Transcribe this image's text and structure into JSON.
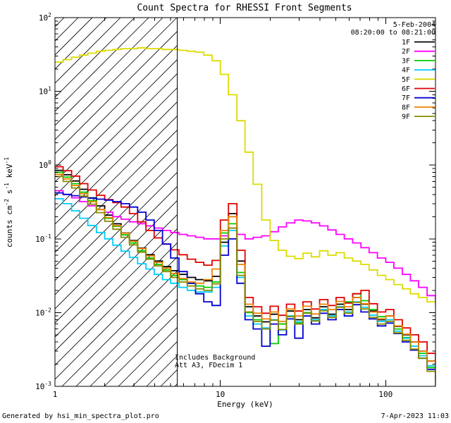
{
  "title": "Count Spectra for RHESSI Front Segments",
  "header": {
    "date": "5-Feb-2004",
    "time_range": "08:20:00 to 08:21:00"
  },
  "annotations": {
    "line1": "Includes Background",
    "line2": "Att A3, FDecim 1"
  },
  "footer": {
    "left": "Generated by hsi_min_spectra_plot.pro",
    "right": "7-Apr-2023 11:03"
  },
  "chart_data": {
    "type": "line",
    "scale": "log-log",
    "step": true,
    "title": "Count Spectra for RHESSI Front Segments",
    "xlabel": "Energy (keV)",
    "ylabel": "counts cm^-2 s^-1 keV^-1",
    "ylabel_segments": [
      [
        "t",
        "counts cm"
      ],
      [
        "sup",
        "-2"
      ],
      [
        "t",
        " s"
      ],
      [
        "sup",
        "-1"
      ],
      [
        "t",
        " keV"
      ],
      [
        "sup",
        "-1"
      ]
    ],
    "xlim": [
      1,
      200
    ],
    "ylim": [
      0.001,
      100
    ],
    "x_ticks": [
      {
        "v": 1,
        "label": "1"
      },
      {
        "v": 10,
        "label": "10"
      },
      {
        "v": 100,
        "label": "100"
      }
    ],
    "y_tick_exponents": [
      -3,
      -2,
      -1,
      0,
      1,
      2
    ],
    "grid": false,
    "legend_position": "top-right",
    "hatch_region": {
      "x_from": 1,
      "x_to": 5.5
    },
    "x": [
      1.0,
      1.12,
      1.26,
      1.41,
      1.58,
      1.78,
      2.0,
      2.24,
      2.51,
      2.82,
      3.16,
      3.55,
      3.98,
      4.47,
      5.01,
      5.62,
      6.31,
      7.08,
      7.94,
      8.91,
      10.0,
      11.2,
      12.6,
      14.1,
      15.8,
      17.8,
      20.0,
      22.4,
      25.1,
      28.2,
      31.6,
      35.5,
      39.8,
      44.7,
      50.1,
      56.2,
      63.1,
      70.8,
      79.4,
      89.1,
      100,
      112,
      126,
      141,
      158,
      178,
      200
    ],
    "series": [
      {
        "name": "1F",
        "color": "#000000",
        "values": [
          0.85,
          0.74,
          0.61,
          0.47,
          0.36,
          0.28,
          0.21,
          0.16,
          0.12,
          0.095,
          0.075,
          0.061,
          0.05,
          0.042,
          0.037,
          0.033,
          0.03,
          0.028,
          0.027,
          0.031,
          0.09,
          0.22,
          0.05,
          0.012,
          0.009,
          0.0075,
          0.0095,
          0.007,
          0.0105,
          0.008,
          0.011,
          0.0085,
          0.012,
          0.0095,
          0.013,
          0.011,
          0.016,
          0.013,
          0.0105,
          0.008,
          0.009,
          0.0065,
          0.005,
          0.004,
          0.003,
          0.0022,
          0.0016
        ]
      },
      {
        "name": "2F",
        "color": "#ff00ff",
        "values": [
          0.45,
          0.4,
          0.36,
          0.32,
          0.28,
          0.25,
          0.23,
          0.2,
          0.185,
          0.17,
          0.16,
          0.15,
          0.14,
          0.13,
          0.122,
          0.115,
          0.11,
          0.105,
          0.1,
          0.1,
          0.11,
          0.14,
          0.115,
          0.1,
          0.105,
          0.11,
          0.125,
          0.145,
          0.165,
          0.18,
          0.175,
          0.165,
          0.15,
          0.132,
          0.115,
          0.1,
          0.088,
          0.076,
          0.065,
          0.055,
          0.048,
          0.04,
          0.033,
          0.027,
          0.022,
          0.017,
          0.013
        ]
      },
      {
        "name": "3F",
        "color": "#00cc00",
        "values": [
          0.8,
          0.69,
          0.56,
          0.43,
          0.33,
          0.25,
          0.19,
          0.148,
          0.113,
          0.088,
          0.069,
          0.055,
          0.045,
          0.038,
          0.032,
          0.028,
          0.025,
          0.023,
          0.022,
          0.026,
          0.12,
          0.16,
          0.035,
          0.01,
          0.008,
          0.006,
          0.0038,
          0.007,
          0.009,
          0.0072,
          0.01,
          0.008,
          0.011,
          0.009,
          0.012,
          0.014,
          0.018,
          0.0145,
          0.011,
          0.0088,
          0.008,
          0.006,
          0.0046,
          0.0035,
          0.0028,
          0.0018,
          0.0012
        ]
      },
      {
        "name": "4F",
        "color": "#00ccff",
        "values": [
          0.35,
          0.3,
          0.24,
          0.19,
          0.152,
          0.122,
          0.1,
          0.082,
          0.068,
          0.056,
          0.046,
          0.039,
          0.033,
          0.028,
          0.025,
          0.022,
          0.02,
          0.019,
          0.019,
          0.022,
          0.08,
          0.13,
          0.03,
          0.009,
          0.007,
          0.0062,
          0.008,
          0.0058,
          0.009,
          0.0075,
          0.0098,
          0.008,
          0.011,
          0.009,
          0.012,
          0.0102,
          0.014,
          0.0118,
          0.0092,
          0.0076,
          0.008,
          0.0056,
          0.0045,
          0.0035,
          0.0026,
          0.0019,
          0.0014
        ]
      },
      {
        "name": "5F",
        "color": "#dcdc00",
        "values": [
          25,
          27,
          29,
          31,
          33,
          35,
          36,
          37,
          38,
          38,
          39,
          38,
          38,
          37,
          37,
          36,
          35,
          34,
          31,
          26,
          17,
          9,
          4,
          1.5,
          0.55,
          0.18,
          0.095,
          0.07,
          0.058,
          0.054,
          0.064,
          0.057,
          0.069,
          0.06,
          0.065,
          0.055,
          0.05,
          0.045,
          0.038,
          0.032,
          0.028,
          0.024,
          0.021,
          0.018,
          0.016,
          0.014,
          0.012
        ]
      },
      {
        "name": "6F",
        "color": "#e00000",
        "values": [
          0.95,
          0.84,
          0.71,
          0.56,
          0.46,
          0.39,
          0.34,
          0.31,
          0.27,
          0.22,
          0.17,
          0.13,
          0.103,
          0.085,
          0.071,
          0.061,
          0.053,
          0.048,
          0.044,
          0.051,
          0.18,
          0.3,
          0.07,
          0.016,
          0.012,
          0.0098,
          0.0122,
          0.0092,
          0.013,
          0.0105,
          0.014,
          0.0112,
          0.015,
          0.0125,
          0.016,
          0.0135,
          0.018,
          0.02,
          0.0132,
          0.0102,
          0.011,
          0.008,
          0.0062,
          0.005,
          0.004,
          0.0028,
          0.002
        ]
      },
      {
        "name": "7F",
        "color": "#0000d0",
        "values": [
          0.42,
          0.4,
          0.385,
          0.37,
          0.355,
          0.345,
          0.335,
          0.32,
          0.3,
          0.27,
          0.23,
          0.18,
          0.13,
          0.085,
          0.055,
          0.036,
          0.025,
          0.018,
          0.014,
          0.0125,
          0.06,
          0.1,
          0.025,
          0.008,
          0.006,
          0.0035,
          0.007,
          0.005,
          0.0082,
          0.0045,
          0.009,
          0.007,
          0.0098,
          0.008,
          0.011,
          0.009,
          0.0128,
          0.0102,
          0.0082,
          0.0066,
          0.0072,
          0.0052,
          0.004,
          0.0031,
          0.0024,
          0.0017,
          0.0012
        ]
      },
      {
        "name": "8F",
        "color": "#f08000",
        "values": [
          0.75,
          0.65,
          0.53,
          0.41,
          0.32,
          0.25,
          0.195,
          0.152,
          0.119,
          0.093,
          0.074,
          0.059,
          0.048,
          0.04,
          0.034,
          0.029,
          0.026,
          0.025,
          0.028,
          0.039,
          0.13,
          0.2,
          0.045,
          0.013,
          0.0098,
          0.0082,
          0.0102,
          0.0076,
          0.0112,
          0.009,
          0.0122,
          0.0096,
          0.013,
          0.011,
          0.0142,
          0.012,
          0.016,
          0.0132,
          0.0102,
          0.0082,
          0.009,
          0.0066,
          0.0051,
          0.004,
          0.003,
          0.0022,
          0.0016
        ]
      },
      {
        "name": "9F",
        "color": "#8a8a00",
        "values": [
          0.7,
          0.6,
          0.49,
          0.38,
          0.295,
          0.227,
          0.173,
          0.135,
          0.105,
          0.083,
          0.066,
          0.053,
          0.043,
          0.036,
          0.03,
          0.026,
          0.023,
          0.021,
          0.02,
          0.0245,
          0.1,
          0.14,
          0.032,
          0.0102,
          0.0076,
          0.006,
          0.0079,
          0.0059,
          0.0088,
          0.007,
          0.0098,
          0.0077,
          0.0106,
          0.0086,
          0.0118,
          0.0098,
          0.0138,
          0.0112,
          0.0086,
          0.007,
          0.0076,
          0.0053,
          0.0042,
          0.0032,
          0.0024,
          0.0016,
          0.001
        ]
      }
    ]
  }
}
